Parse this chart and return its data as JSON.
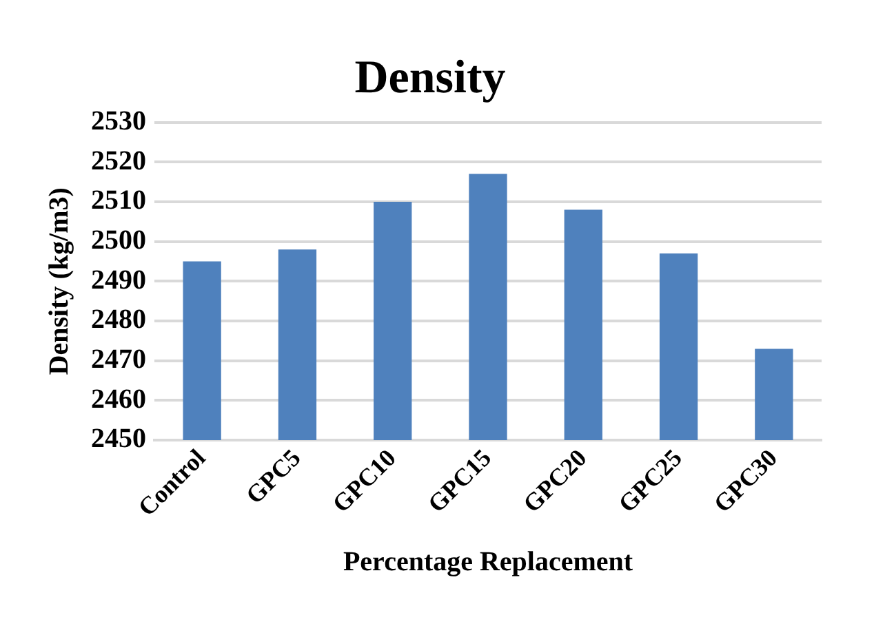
{
  "chart_data": {
    "type": "bar",
    "title": "Density",
    "xlabel": "Percentage Replacement",
    "ylabel": "Density (kg/m3)",
    "categories": [
      "Control",
      "GPC5",
      "GPC10",
      "GPC15",
      "GPC20",
      "GPC25",
      "GPC30"
    ],
    "values": [
      2495,
      2498,
      2510,
      2517,
      2508,
      2497,
      2473
    ],
    "color": "#4f81bd",
    "ylim": [
      2450,
      2530
    ],
    "yticks": [
      2450,
      2460,
      2470,
      2480,
      2490,
      2500,
      2510,
      2520,
      2530
    ],
    "grid": "y",
    "legend": false
  }
}
